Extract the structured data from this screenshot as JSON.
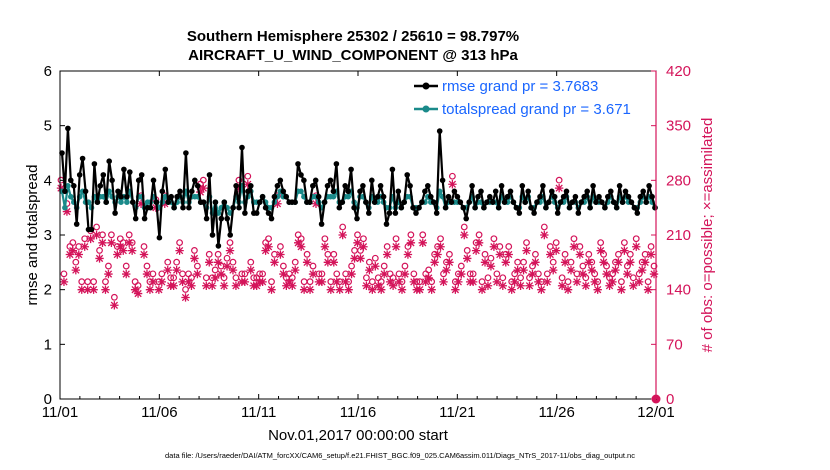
{
  "chart_data": {
    "type": "line",
    "title": "Southern Hemisphere 25302 / 25610 = 98.797%",
    "subtitle": "AIRCRAFT_U_WIND_COMPONENT @ 313 hPa",
    "xlabel": "Nov.01,2017 00:00:00 start",
    "ylabel": "rmse and totalspread",
    "ylabel_right": "# of obs: o=possible; ×=assimilated",
    "footer": "data file: /Users/raeder/DAI/ATM_forcXX/CAM6_setup/f.e21.FHIST_BGC.f09_025.CAM6assim.011/Diags_NTrS_2017-11/obs_diag_output.nc",
    "xlim": [
      0,
      30
    ],
    "xticks": [
      0,
      5,
      10,
      15,
      20,
      25,
      30
    ],
    "xtick_labels": [
      "11/01",
      "11/06",
      "11/11",
      "11/16",
      "11/21",
      "11/26",
      "12/01"
    ],
    "ylim": [
      0,
      6
    ],
    "yticks": [
      "0",
      "1",
      "2",
      "3",
      "4",
      "5",
      "6"
    ],
    "ylim_right": [
      0,
      420
    ],
    "yticks_right": [
      "0",
      "70",
      "140",
      "210",
      "280",
      "350",
      "420"
    ],
    "legend_location": "top-right",
    "series": [
      {
        "name": "rmse grand pr = 3.7683",
        "color": "#000000",
        "values": [
          4.5,
          3.8,
          4.95,
          4.0,
          3.9,
          3.2,
          4.1,
          4.4,
          3.8,
          3.1,
          3.1,
          4.3,
          3.6,
          3.9,
          4.1,
          3.6,
          4.35,
          4.0,
          3.4,
          3.8,
          3.7,
          4.2,
          3.7,
          4.15,
          3.6,
          3.3,
          4.0,
          4.1,
          3.3,
          3.5,
          3.5,
          4.0,
          3.6,
          2.95,
          3.8,
          4.2,
          3.6,
          3.7,
          3.5,
          3.7,
          3.8,
          3.5,
          4.5,
          3.5,
          3.8,
          4.0,
          3.9,
          3.6,
          3.6,
          3.3,
          4.1,
          3.0,
          3.6,
          2.8,
          3.3,
          3.6,
          3.3,
          3.0,
          3.5,
          3.9,
          3.5,
          4.6,
          3.4,
          3.8,
          3.9,
          3.4,
          3.4,
          3.6,
          3.7,
          3.5,
          3.4,
          3.3,
          3.7,
          3.9,
          4.0,
          3.8,
          3.7,
          3.6,
          3.6,
          3.6,
          4.3,
          4.1,
          4.0,
          3.6,
          3.6,
          3.9,
          4.0,
          3.7,
          3.2,
          3.6,
          3.9,
          4.0,
          3.8,
          4.3,
          3.5,
          3.6,
          3.9,
          3.8,
          4.2,
          3.5,
          3.3,
          3.8,
          3.9,
          3.6,
          3.4,
          4.0,
          3.6,
          3.7,
          3.9,
          3.7,
          3.2,
          3.4,
          4.2,
          3.4,
          3.8,
          3.5,
          3.6,
          4.1,
          3.9,
          3.5,
          3.4,
          3.5,
          3.6,
          3.8,
          3.9,
          3.7,
          3.6,
          3.4,
          4.9,
          4.0,
          3.5,
          3.7,
          3.6,
          3.8,
          3.7,
          3.6,
          3.5,
          3.3,
          3.6,
          3.9,
          3.5,
          3.7,
          3.8,
          3.5,
          3.6,
          3.7,
          3.6,
          3.8,
          3.5,
          3.9,
          3.6,
          3.7,
          3.8,
          3.6,
          3.5,
          3.4,
          3.9,
          3.6,
          3.8,
          3.5,
          3.4,
          3.6,
          3.7,
          3.9,
          3.5,
          3.6,
          3.8,
          3.7,
          3.4,
          3.6,
          3.7,
          3.8,
          3.5,
          3.6,
          3.7,
          3.4,
          3.6,
          3.7,
          3.8,
          3.5,
          3.9,
          3.6,
          3.7,
          3.6,
          3.5,
          3.7,
          3.8,
          3.6,
          3.5,
          3.9,
          3.6,
          3.8,
          3.7,
          3.6,
          3.5,
          3.4,
          3.7,
          3.8,
          3.6,
          3.9,
          3.7,
          3.5
        ]
      },
      {
        "name": "totalspread grand pr = 3.671",
        "color": "#1a8a8a",
        "values": [
          3.8,
          3.5,
          3.9,
          3.7,
          3.6,
          3.5,
          3.7,
          3.8,
          3.6,
          3.6,
          3.5,
          3.7,
          3.6,
          3.7,
          3.7,
          3.6,
          3.8,
          3.7,
          3.6,
          3.7,
          3.6,
          3.7,
          3.6,
          3.8,
          3.6,
          3.5,
          3.7,
          3.7,
          3.5,
          3.6,
          3.6,
          3.7,
          3.6,
          3.5,
          3.6,
          3.7,
          3.6,
          3.6,
          3.5,
          3.6,
          3.7,
          3.6,
          3.8,
          3.6,
          3.7,
          3.7,
          3.7,
          3.6,
          3.6,
          3.5,
          3.7,
          3.4,
          3.6,
          3.4,
          3.5,
          3.6,
          3.5,
          3.4,
          3.5,
          3.7,
          3.6,
          3.9,
          3.6,
          3.7,
          3.8,
          3.6,
          3.6,
          3.6,
          3.7,
          3.6,
          3.5,
          3.5,
          3.6,
          3.7,
          3.8,
          3.7,
          3.7,
          3.6,
          3.6,
          3.6,
          3.8,
          3.8,
          3.7,
          3.6,
          3.6,
          3.7,
          3.7,
          3.6,
          3.5,
          3.6,
          3.7,
          3.7,
          3.7,
          3.8,
          3.6,
          3.6,
          3.7,
          3.7,
          3.8,
          3.6,
          3.5,
          3.7,
          3.7,
          3.6,
          3.5,
          3.7,
          3.6,
          3.6,
          3.7,
          3.6,
          3.5,
          3.5,
          3.7,
          3.5,
          3.6,
          3.5,
          3.6,
          3.7,
          3.7,
          3.5,
          3.5,
          3.5,
          3.6,
          3.6,
          3.7,
          3.6,
          3.6,
          3.5,
          3.8,
          3.7,
          3.5,
          3.6,
          3.6,
          3.6,
          3.6,
          3.6,
          3.5,
          3.5,
          3.6,
          3.7,
          3.5,
          3.6,
          3.6,
          3.5,
          3.6,
          3.6,
          3.6,
          3.6,
          3.5,
          3.7,
          3.6,
          3.6,
          3.7,
          3.6,
          3.5,
          3.5,
          3.7,
          3.6,
          3.7,
          3.5,
          3.5,
          3.6,
          3.6,
          3.7,
          3.5,
          3.6,
          3.7,
          3.6,
          3.5,
          3.6,
          3.6,
          3.7,
          3.5,
          3.6,
          3.6,
          3.5,
          3.6,
          3.6,
          3.7,
          3.5,
          3.7,
          3.6,
          3.6,
          3.6,
          3.5,
          3.6,
          3.7,
          3.6,
          3.5,
          3.7,
          3.6,
          3.7,
          3.6,
          3.6,
          3.5,
          3.5,
          3.6,
          3.7,
          3.6,
          3.7,
          3.6,
          3.5
        ]
      }
    ],
    "obs_counts": {
      "name": "# of obs",
      "color": "#d4145a",
      "possible": [
        270,
        150,
        240,
        185,
        190,
        165,
        185,
        140,
        195,
        140,
        205,
        140,
        210,
        180,
        200,
        140,
        160,
        200,
        120,
        185,
        195,
        190,
        160,
        200,
        190,
        140,
        135,
        250,
        185,
        160,
        140,
        150,
        245,
        140,
        150,
        250,
        165,
        145,
        145,
        165,
        190,
        150,
        130,
        150,
        145,
        180,
        160,
        265,
        270,
        145,
        175,
        145,
        155,
        175,
        160,
        145,
        170,
        190,
        165,
        145,
        270,
        150,
        150,
        275,
        165,
        145,
        145,
        150,
        150,
        190,
        195,
        140,
        175,
        250,
        185,
        160,
        145,
        150,
        145,
        165,
        200,
        195,
        140,
        175,
        140,
        160,
        250,
        150,
        150,
        195,
        175,
        140,
        175,
        150,
        140,
        210,
        150,
        140,
        160,
        180,
        200,
        180,
        195,
        145,
        165,
        140,
        170,
        145,
        140,
        160,
        185,
        150,
        145,
        195,
        150,
        140,
        160,
        185,
        200,
        150,
        140,
        140,
        200,
        150,
        155,
        140,
        175,
        185,
        195,
        150,
        165,
        175,
        275,
        140,
        150,
        160,
        210,
        180,
        150,
        150,
        190,
        200,
        140,
        175,
        145,
        170,
        195,
        150,
        185,
        145,
        175,
        185,
        140,
        150,
        165,
        145,
        165,
        190,
        145,
        160,
        175,
        150,
        140,
        210,
        150,
        185,
        165,
        190,
        270,
        145,
        175,
        140,
        165,
        195,
        150,
        185,
        160,
        145,
        175,
        165,
        150,
        140,
        190,
        175,
        160,
        145,
        150,
        165,
        175,
        140,
        190,
        160,
        175,
        145,
        195,
        150,
        165,
        175,
        140,
        185,
        160
      ]
    }
  }
}
